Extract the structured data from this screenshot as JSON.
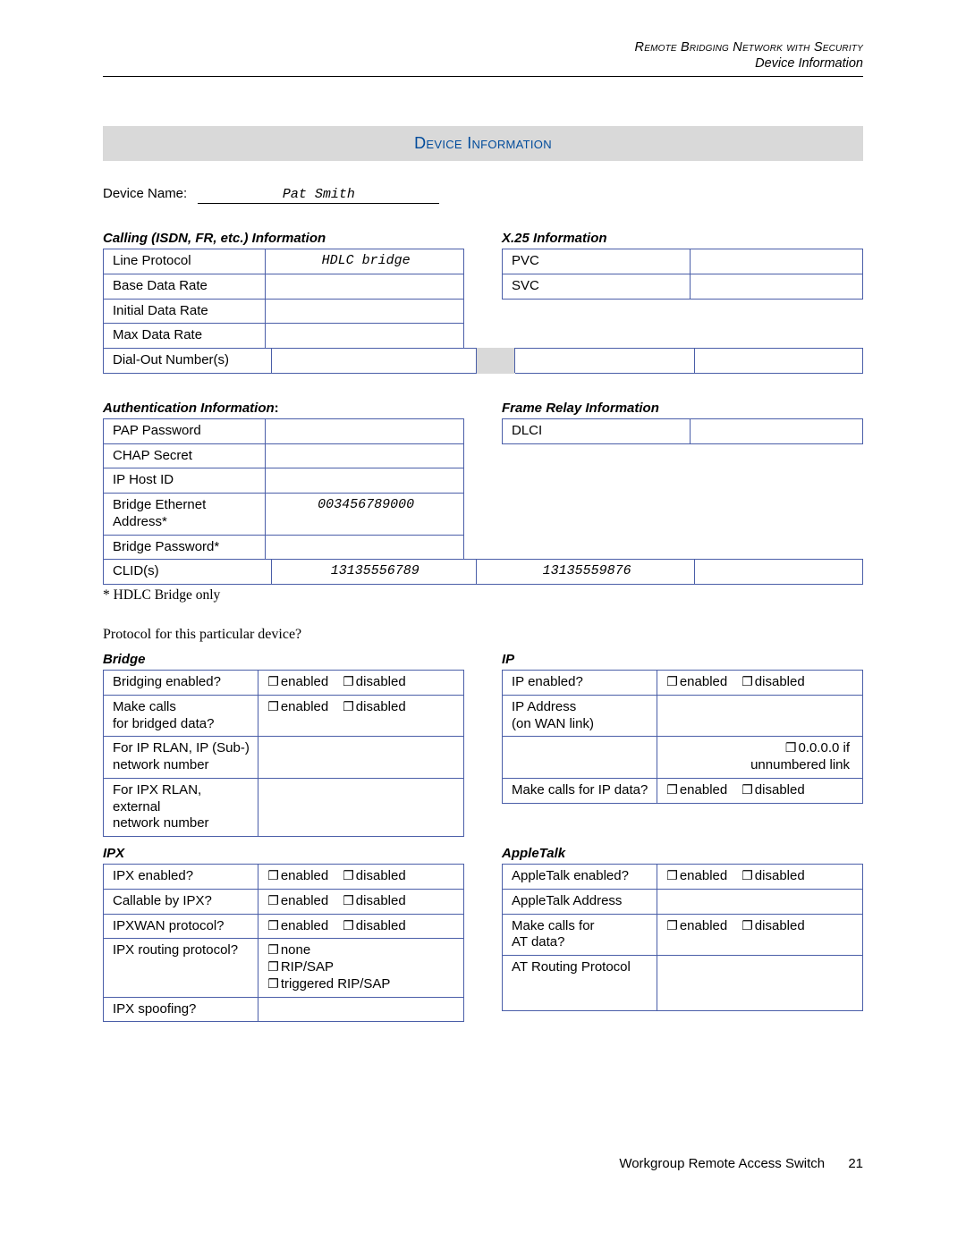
{
  "header": {
    "line1": "Remote Bridging Network with Security",
    "line2": "Device Information"
  },
  "title": "Device Information",
  "device_name_label": "Device Name:",
  "device_name_value": "Pat Smith",
  "calling": {
    "heading": "Calling (ISDN, FR, etc.) Information",
    "rows": {
      "line_protocol": {
        "label": "Line Protocol",
        "value": "HDLC bridge"
      },
      "base_data_rate": {
        "label": "Base Data Rate",
        "value": ""
      },
      "initial_data_rate": {
        "label": "Initial Data Rate",
        "value": ""
      },
      "max_data_rate": {
        "label": "Max Data Rate",
        "value": ""
      },
      "dial_out": {
        "label": "Dial-Out Number(s)",
        "value": ""
      }
    }
  },
  "x25": {
    "heading": "X.25 Information",
    "rows": {
      "pvc": {
        "label": "PVC",
        "value": ""
      },
      "svc": {
        "label": "SVC",
        "value": ""
      }
    }
  },
  "auth": {
    "heading": "Authentication Information",
    "colon": ":",
    "rows": {
      "pap": {
        "label": "PAP Password",
        "value": ""
      },
      "chap": {
        "label": "CHAP Secret",
        "value": ""
      },
      "ip_host_id": {
        "label": "IP Host ID",
        "value": ""
      },
      "bridge_eth": {
        "label": "Bridge Ethernet Address*",
        "value": "003456789000"
      },
      "bridge_pw": {
        "label": "Bridge Password*",
        "value": ""
      },
      "clids": {
        "label": "CLID(s)",
        "v1": "13135556789",
        "v2": "13135559876",
        "v3": ""
      }
    },
    "footnote": "* HDLC Bridge only"
  },
  "frame_relay": {
    "heading": "Frame Relay Information",
    "rows": {
      "dlci": {
        "label": "DLCI",
        "value": ""
      }
    }
  },
  "question": "Protocol for this particular device?",
  "bridge": {
    "heading": "Bridge",
    "enabled_label": "enabled",
    "disabled_label": "disabled",
    "rows": {
      "bridging": "Bridging enabled?",
      "make_calls": "Make calls\nfor bridged data?",
      "ip_rlan": "For IP RLAN, IP (Sub-)\nnetwork number",
      "ipx_rlan": "For IPX RLAN, external\nnetwork number"
    }
  },
  "ip": {
    "heading": "IP",
    "enabled_label": "enabled",
    "disabled_label": "disabled",
    "unnumbered": "0.0.0.0 if\nunnumbered link",
    "rows": {
      "ip_enabled": "IP enabled?",
      "ip_address": "IP Address\n(on WAN link)",
      "make_calls": "Make calls for IP data?"
    }
  },
  "ipx": {
    "heading": "IPX",
    "enabled_label": "enabled",
    "disabled_label": "disabled",
    "routing_opts": {
      "none": "none",
      "ripsap": "RIP/SAP",
      "triggered": "triggered RIP/SAP"
    },
    "rows": {
      "ipx_enabled": "IPX enabled?",
      "callable": "Callable by IPX?",
      "ipxwan": "IPXWAN protocol?",
      "routing": "IPX routing protocol?",
      "spoofing": "IPX spoofing?"
    }
  },
  "appletalk": {
    "heading": "AppleTalk",
    "enabled_label": "enabled",
    "disabled_label": "disabled",
    "rows": {
      "at_enabled": "AppleTalk enabled?",
      "at_address": "AppleTalk Address",
      "make_calls": "Make calls for\nAT data?",
      "routing": "AT Routing Protocol"
    }
  },
  "footer": {
    "text": "Workgroup Remote Access Switch",
    "page": "21"
  },
  "checkbox_glyph": "❐"
}
